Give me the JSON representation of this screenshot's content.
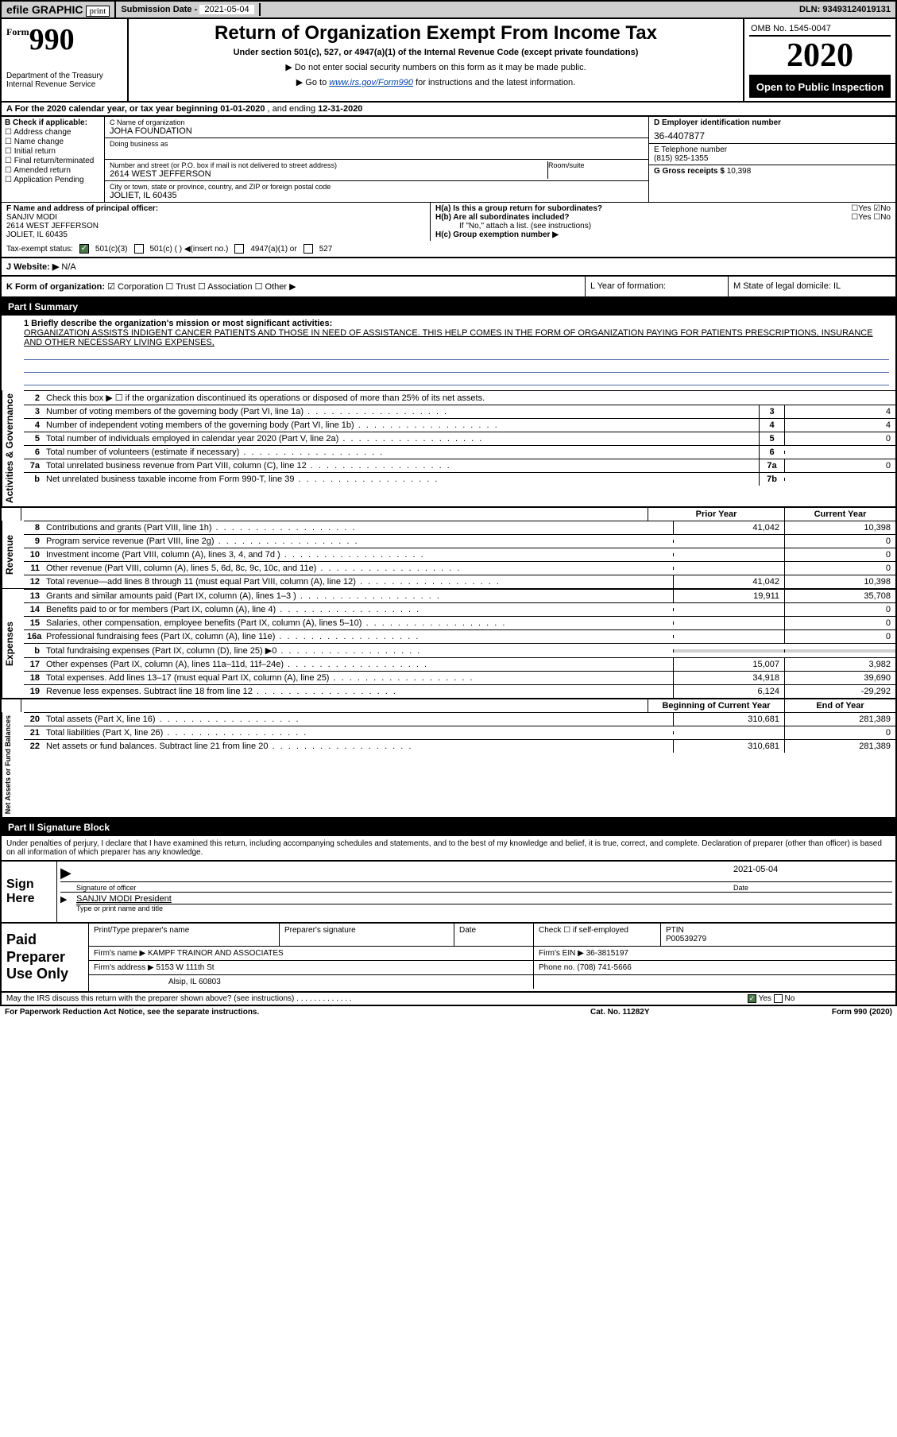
{
  "topbar": {
    "efile": "efile GRAPHIC",
    "print": "print",
    "sub_label": "Submission Date - ",
    "sub_date": "2021-05-04",
    "dln": "DLN: 93493124019131"
  },
  "hdr": {
    "form_small": "Form",
    "form_num": "990",
    "dept": "Department of the Treasury\nInternal Revenue Service",
    "title": "Return of Organization Exempt From Income Tax",
    "sub": "Under section 501(c), 527, or 4947(a)(1) of the Internal Revenue Code (except private foundations)",
    "arrow1": "▶ Do not enter social security numbers on this form as it may be made public.",
    "arrow2_pre": "▶ Go to ",
    "arrow2_link": "www.irs.gov/Form990",
    "arrow2_post": " for instructions and the latest information.",
    "omb": "OMB No. 1545-0047",
    "year": "2020",
    "open": "Open to Public Inspection"
  },
  "rowA": {
    "text_pre": "A For the 2020 calendar year, or tax year beginning ",
    "begin": "01-01-2020",
    "mid": "  , and ending ",
    "end": "12-31-2020"
  },
  "B": {
    "hdr": "B Check if applicable:",
    "opts": [
      "☐ Address change",
      "☐ Name change",
      "☐ Initial return",
      "☐ Final return/terminated",
      "☐ Amended return",
      "☐ Application Pending"
    ]
  },
  "C": {
    "name_lbl": "C Name of organization",
    "name": "JOHA FOUNDATION",
    "dba_lbl": "Doing business as",
    "dba": "",
    "addr_lbl": "Number and street (or P.O. box if mail is not delivered to street address)",
    "room_lbl": "Room/suite",
    "addr": "2614 WEST JEFFERSON",
    "city_lbl": "City or town, state or province, country, and ZIP or foreign postal code",
    "city": "JOLIET, IL  60435"
  },
  "D": {
    "lbl": "D Employer identification number",
    "val": "36-4407877"
  },
  "E": {
    "lbl": "E Telephone number",
    "val": "(815) 925-1355"
  },
  "G": {
    "lbl": "G Gross receipts $ ",
    "val": "10,398"
  },
  "F": {
    "lbl": "F  Name and address of principal officer:",
    "name": "SANJIV MODI",
    "addr1": "2614 WEST JEFFERSON",
    "addr2": "JOLIET, IL  60435"
  },
  "H": {
    "a": "H(a)  Is this a group return for subordinates?",
    "a_yes": "☐Yes",
    "a_no": "☑No",
    "b": "H(b)  Are all subordinates included?",
    "b_yes": "☐Yes",
    "b_no": "☐No",
    "b_note": "If \"No,\" attach a list. (see instructions)",
    "c": "H(c)  Group exemption number ▶"
  },
  "tax": {
    "lbl": "Tax-exempt status:",
    "o1": "501(c)(3)",
    "o2": "501(c) (  ) ◀(insert no.)",
    "o3": "4947(a)(1) or",
    "o4": "527"
  },
  "J": {
    "lbl": "J   Website: ▶",
    "val": "N/A"
  },
  "K": {
    "lbl": "K Form of organization:",
    "opts": "☑ Corporation  ☐ Trust  ☐ Association  ☐ Other ▶",
    "L": "L Year of formation:",
    "M": "M State of legal domicile: IL"
  },
  "part1": {
    "hdr": "Part I     Summary",
    "l1_lbl": "1  Briefly describe the organization's mission or most significant activities:",
    "l1_text": "ORGANIZATION ASSISTS INDIGENT CANCER PATIENTS AND THOSE IN NEED OF ASSISTANCE. THIS HELP COMES IN THE FORM OF ORGANIZATION PAYING FOR PATIENTS PRESCRIPTIONS, INSURANCE AND OTHER NECESSARY LIVING EXPENSES,",
    "l2": "Check this box ▶ ☐  if the organization discontinued its operations or disposed of more than 25% of its net assets.",
    "ag_lines": [
      {
        "n": "3",
        "label": "Number of voting members of the governing body (Part VI, line 1a)",
        "box": "3",
        "v": "4"
      },
      {
        "n": "4",
        "label": "Number of independent voting members of the governing body (Part VI, line 1b)",
        "box": "4",
        "v": "4"
      },
      {
        "n": "5",
        "label": "Total number of individuals employed in calendar year 2020 (Part V, line 2a)",
        "box": "5",
        "v": "0"
      },
      {
        "n": "6",
        "label": "Total number of volunteers (estimate if necessary)",
        "box": "6",
        "v": ""
      },
      {
        "n": "7a",
        "label": "Total unrelated business revenue from Part VIII, column (C), line 12",
        "box": "7a",
        "v": "0"
      },
      {
        "n": "b",
        "label": "Net unrelated business taxable income from Form 990-T, line 39",
        "box": "7b",
        "v": ""
      }
    ],
    "col_prior": "Prior Year",
    "col_curr": "Current Year",
    "rev_lines": [
      {
        "n": "8",
        "label": "Contributions and grants (Part VIII, line 1h)",
        "p": "41,042",
        "c": "10,398"
      },
      {
        "n": "9",
        "label": "Program service revenue (Part VIII, line 2g)",
        "p": "",
        "c": "0"
      },
      {
        "n": "10",
        "label": "Investment income (Part VIII, column (A), lines 3, 4, and 7d )",
        "p": "",
        "c": "0"
      },
      {
        "n": "11",
        "label": "Other revenue (Part VIII, column (A), lines 5, 6d, 8c, 9c, 10c, and 11e)",
        "p": "",
        "c": "0"
      },
      {
        "n": "12",
        "label": "Total revenue—add lines 8 through 11 (must equal Part VIII, column (A), line 12)",
        "p": "41,042",
        "c": "10,398"
      }
    ],
    "exp_lines": [
      {
        "n": "13",
        "label": "Grants and similar amounts paid (Part IX, column (A), lines 1–3 )",
        "p": "19,911",
        "c": "35,708"
      },
      {
        "n": "14",
        "label": "Benefits paid to or for members (Part IX, column (A), line 4)",
        "p": "",
        "c": "0"
      },
      {
        "n": "15",
        "label": "Salaries, other compensation, employee benefits (Part IX, column (A), lines 5–10)",
        "p": "",
        "c": "0"
      },
      {
        "n": "16a",
        "label": "Professional fundraising fees (Part IX, column (A), line 11e)",
        "p": "",
        "c": "0"
      },
      {
        "n": "b",
        "label": "Total fundraising expenses (Part IX, column (D), line 25) ▶0",
        "p": "shade",
        "c": "shade"
      },
      {
        "n": "17",
        "label": "Other expenses (Part IX, column (A), lines 11a–11d, 11f–24e)",
        "p": "15,007",
        "c": "3,982"
      },
      {
        "n": "18",
        "label": "Total expenses. Add lines 13–17 (must equal Part IX, column (A), line 25)",
        "p": "34,918",
        "c": "39,690"
      },
      {
        "n": "19",
        "label": "Revenue less expenses. Subtract line 18 from line 12",
        "p": "6,124",
        "c": "-29,292"
      }
    ],
    "col_beg": "Beginning of Current Year",
    "col_end": "End of Year",
    "na_lines": [
      {
        "n": "20",
        "label": "Total assets (Part X, line 16)",
        "p": "310,681",
        "c": "281,389"
      },
      {
        "n": "21",
        "label": "Total liabilities (Part X, line 26)",
        "p": "",
        "c": "0"
      },
      {
        "n": "22",
        "label": "Net assets or fund balances. Subtract line 21 from line 20",
        "p": "310,681",
        "c": "281,389"
      }
    ],
    "vlabels": {
      "ag": "Activities & Governance",
      "rev": "Revenue",
      "exp": "Expenses",
      "na": "Net Assets or Fund Balances"
    }
  },
  "part2": {
    "hdr": "Part II     Signature Block",
    "decl": "Under penalties of perjury, I declare that I have examined this return, including accompanying schedules and statements, and to the best of my knowledge and belief, it is true, correct, and complete. Declaration of preparer (other than officer) is based on all information of which preparer has any knowledge."
  },
  "sign": {
    "lbl": "Sign Here",
    "sig_lbl": "Signature of officer",
    "date_lbl": "Date",
    "date": "2021-05-04",
    "name": "SANJIV MODI  President",
    "type_lbl": "Type or print name and title"
  },
  "prep": {
    "lbl": "Paid Preparer Use Only",
    "r1": {
      "c1": "Print/Type preparer's name",
      "c2": "Preparer's signature",
      "c3": "Date",
      "c4": "Check ☐ if self-employed",
      "c5": "PTIN\nP00539279"
    },
    "r2": {
      "c1_lbl": "Firm's name    ▶ ",
      "c1": "KAMPF TRAINOR AND ASSOCIATES",
      "c2_lbl": "Firm's EIN ▶ ",
      "c2": "36-3815197"
    },
    "r3": {
      "c1_lbl": "Firm's address ▶ ",
      "c1": "5153 W 111th St",
      "c2_lbl": "Phone no. ",
      "c2": "(708) 741-5666"
    },
    "r4": {
      "c1": "Alsip, IL  60803"
    }
  },
  "footer": {
    "discuss": "May the IRS discuss this return with the preparer shown above? (see instructions)  .   .   .   .   .   .   .   .   .   .   .   .   .",
    "yes": "☑ Yes",
    "no": "☐ No"
  },
  "bottom": {
    "l": "For Paperwork Reduction Act Notice, see the separate instructions.",
    "m": "Cat. No. 11282Y",
    "r": "Form 990 (2020)"
  }
}
